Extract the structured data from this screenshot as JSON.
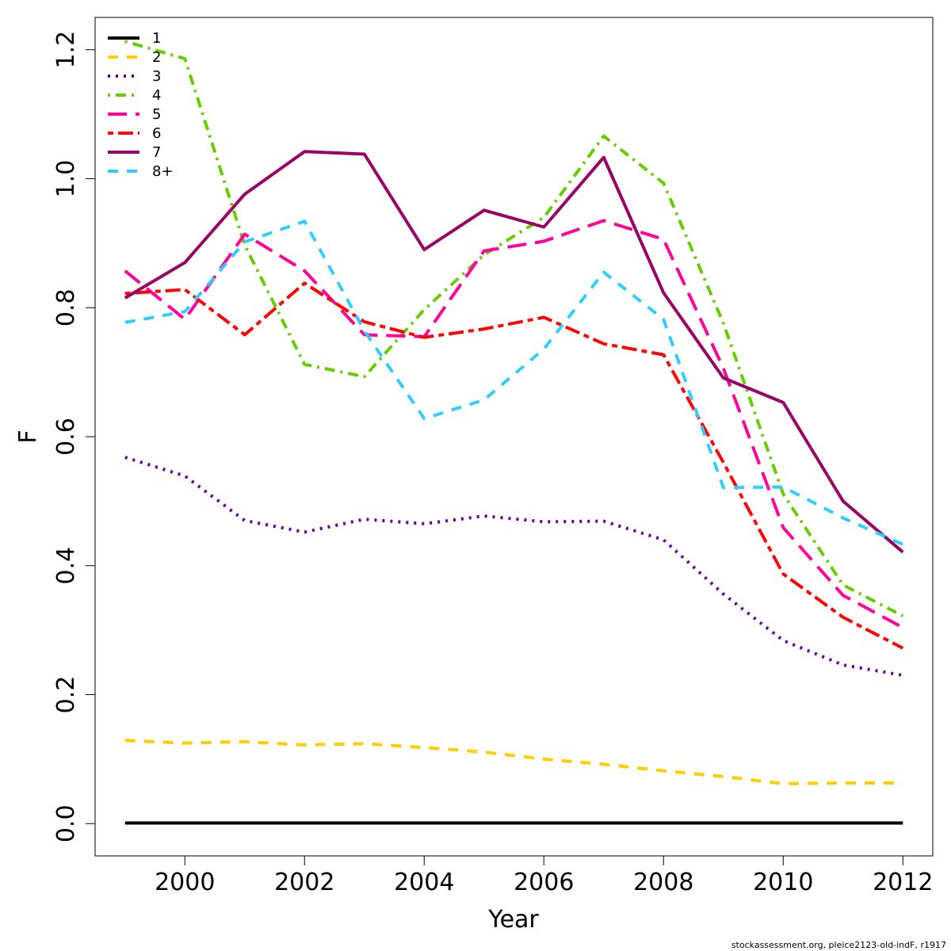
{
  "chart_data": {
    "type": "line",
    "xlabel": "Year",
    "ylabel": "F",
    "xlim": [
      1998.5,
      2012.5
    ],
    "ylim": [
      -0.05,
      1.25
    ],
    "xticks": [
      2000,
      2002,
      2004,
      2006,
      2008,
      2010,
      2012
    ],
    "yticks": [
      0.0,
      0.2,
      0.4,
      0.6,
      0.8,
      1.0,
      1.2
    ],
    "grid": false,
    "legend_position": "top-left",
    "x": [
      1999,
      2000,
      2001,
      2002,
      2003,
      2004,
      2005,
      2006,
      2007,
      2008,
      2009,
      2010,
      2011,
      2012
    ],
    "series": [
      {
        "name": "1",
        "color": "#000000",
        "dash": "solid",
        "values": [
          0.001,
          0.001,
          0.001,
          0.001,
          0.001,
          0.001,
          0.001,
          0.001,
          0.001,
          0.001,
          0.001,
          0.001,
          0.001,
          0.001
        ]
      },
      {
        "name": "2",
        "color": "#FFCC00",
        "dash": "dashed",
        "values": [
          0.129,
          0.125,
          0.127,
          0.122,
          0.124,
          0.118,
          0.111,
          0.1,
          0.092,
          0.082,
          0.073,
          0.062,
          0.063,
          0.063
        ]
      },
      {
        "name": "3",
        "color": "#660099",
        "dash": "dotted",
        "values": [
          0.568,
          0.539,
          0.47,
          0.452,
          0.472,
          0.465,
          0.477,
          0.468,
          0.469,
          0.44,
          0.356,
          0.284,
          0.246,
          0.23
        ]
      },
      {
        "name": "4",
        "color": "#66CC00",
        "dash": "dotdash",
        "values": [
          1.213,
          1.186,
          0.897,
          0.712,
          0.693,
          0.797,
          0.882,
          0.94,
          1.066,
          0.993,
          0.776,
          0.511,
          0.37,
          0.322
        ]
      },
      {
        "name": "5",
        "color": "#FF0099",
        "dash": "longdash",
        "values": [
          0.857,
          0.782,
          0.914,
          0.857,
          0.758,
          0.755,
          0.888,
          0.903,
          0.935,
          0.906,
          0.706,
          0.459,
          0.354,
          0.304
        ]
      },
      {
        "name": "6",
        "color": "#FF0000",
        "dash": "twodash",
        "values": [
          0.822,
          0.828,
          0.758,
          0.838,
          0.778,
          0.754,
          0.767,
          0.785,
          0.744,
          0.727,
          0.56,
          0.387,
          0.32,
          0.272
        ]
      },
      {
        "name": "7",
        "color": "#990066",
        "dash": "solid",
        "values": [
          0.815,
          0.87,
          0.976,
          1.042,
          1.038,
          0.89,
          0.951,
          0.925,
          1.033,
          0.823,
          0.691,
          0.653,
          0.5,
          0.421
        ]
      },
      {
        "name": "8+",
        "color": "#33CCFF",
        "dash": "dashed",
        "values": [
          0.777,
          0.794,
          0.902,
          0.934,
          0.764,
          0.628,
          0.657,
          0.736,
          0.855,
          0.782,
          0.521,
          0.522,
          0.474,
          0.433
        ]
      }
    ]
  },
  "credit": "stockassessment.org, pleice2123-old-indF, r1917"
}
